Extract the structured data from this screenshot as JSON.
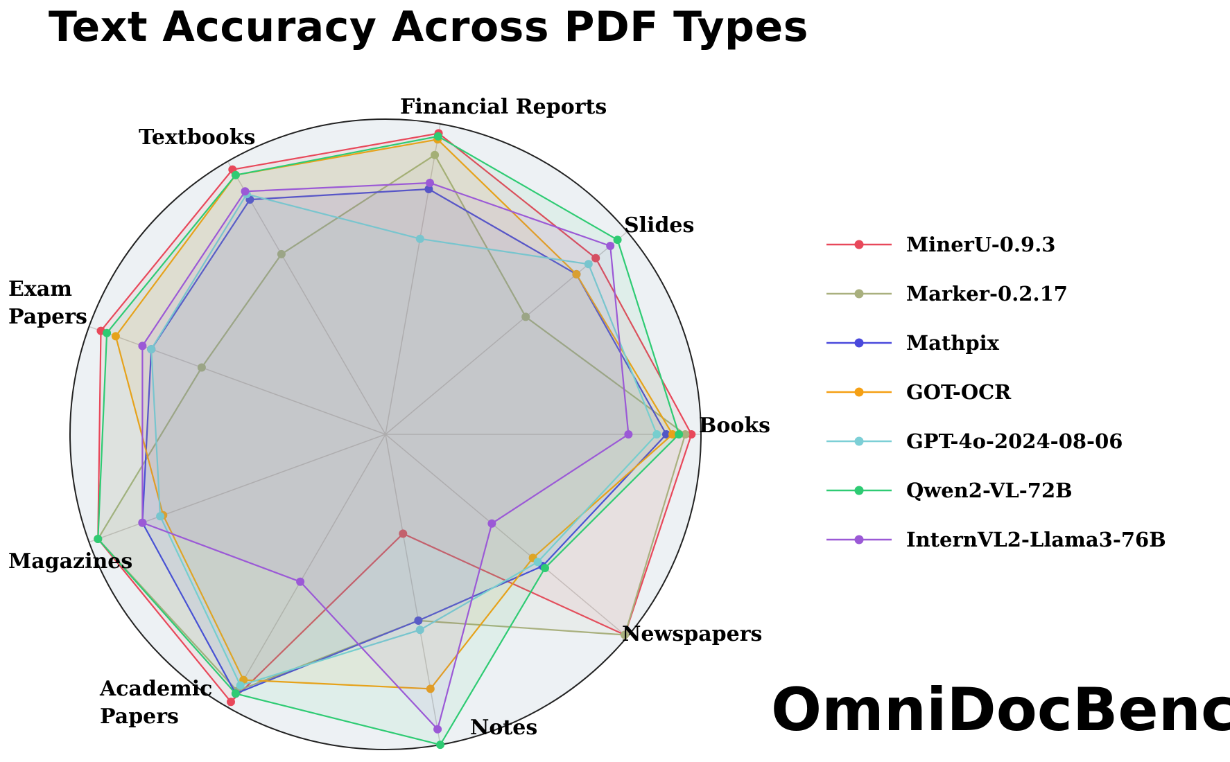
{
  "chart_data": {
    "type": "radar",
    "title": "Text Accuracy Across PDF Types",
    "categories": [
      "Books",
      "Slides",
      "Financial Reports",
      "Textbooks",
      "Exam\nPapers",
      "Magazines",
      "Academic\nPapers",
      "Notes",
      "Newspapers"
    ],
    "rlim": [
      0,
      1
    ],
    "grid": true,
    "legend_position": "right",
    "series": [
      {
        "name": "MinerU-0.9.3",
        "color": "#e8485a",
        "values": [
          0.97,
          0.87,
          0.97,
          0.97,
          0.96,
          0.97,
          0.98,
          0.32,
          0.99
        ]
      },
      {
        "name": "Marker-0.2.17",
        "color": "#a9b07e",
        "values": [
          0.95,
          0.58,
          0.9,
          0.66,
          0.62,
          0.97,
          0.94,
          0.6,
          0.99
        ]
      },
      {
        "name": "Mathpix",
        "color": "#4a49dc",
        "values": [
          0.89,
          0.79,
          0.79,
          0.86,
          0.79,
          0.82,
          0.95,
          0.6,
          0.65
        ]
      },
      {
        "name": "GOT-OCR",
        "color": "#f5a014",
        "values": [
          0.91,
          0.79,
          0.95,
          0.95,
          0.91,
          0.75,
          0.9,
          0.82,
          0.61
        ]
      },
      {
        "name": "GPT-4o-2024-08-06",
        "color": "#7ccfd6",
        "values": [
          0.86,
          0.84,
          0.63,
          0.88,
          0.79,
          0.76,
          0.92,
          0.63,
          0.63
        ]
      },
      {
        "name": "Qwen2-VL-72B",
        "color": "#2ecb73",
        "values": [
          0.93,
          0.96,
          0.96,
          0.95,
          0.94,
          0.97,
          0.95,
          1.0,
          0.66
        ]
      },
      {
        "name": "InternVL2-Llama3-76B",
        "color": "#9b59d6",
        "values": [
          0.77,
          0.93,
          0.81,
          0.89,
          0.82,
          0.82,
          0.54,
          0.95,
          0.44
        ]
      }
    ]
  },
  "watermark": "OmniDocBench"
}
